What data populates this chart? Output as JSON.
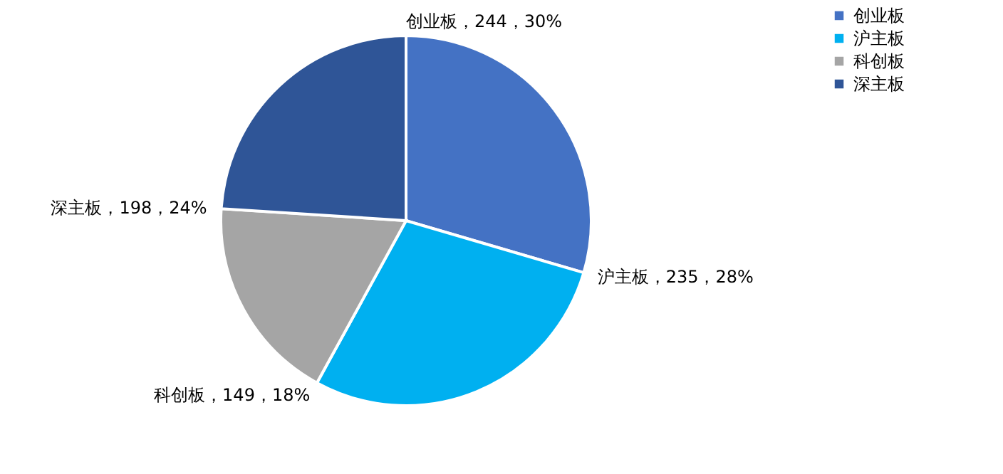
{
  "chart_data": {
    "type": "pie",
    "categories": [
      "创业板",
      "沪主板",
      "科创板",
      "深主板"
    ],
    "values": [
      244,
      235,
      149,
      198
    ],
    "colors": [
      "#4472c4",
      "#00b0f0",
      "#a5a5a5",
      "#2f5597"
    ],
    "value_labels": [
      "创业板，244，30%",
      "沪主板，235，28%",
      "科创板，149，18%",
      "深主板，198，24%"
    ],
    "legend": "right"
  }
}
